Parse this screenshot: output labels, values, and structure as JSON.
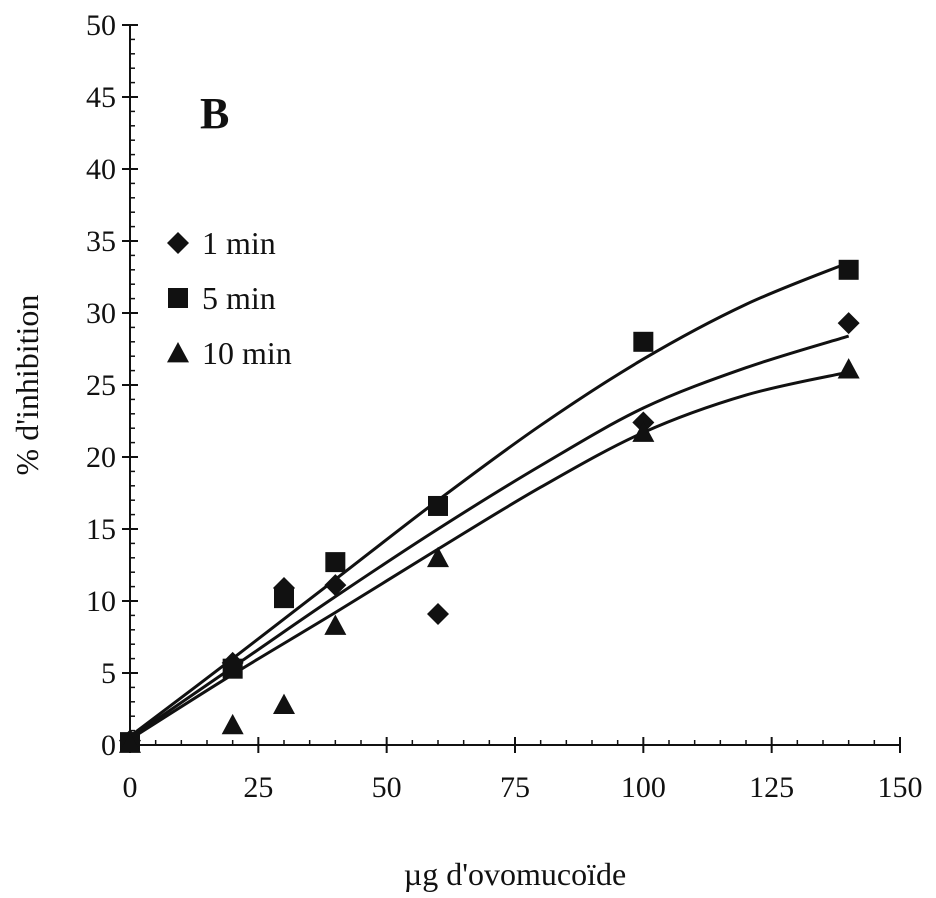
{
  "chart_data": {
    "type": "scatter",
    "panel_label": "B",
    "xlabel": "µg d'ovomucoïde",
    "ylabel": "% d'inhibition",
    "xlim": [
      0,
      150
    ],
    "ylim": [
      0,
      50
    ],
    "x_ticks": [
      0,
      25,
      50,
      75,
      100,
      125,
      150
    ],
    "y_ticks": [
      0,
      5,
      10,
      15,
      20,
      25,
      30,
      35,
      40,
      45,
      50
    ],
    "grid": false,
    "legend_position": "left",
    "series": [
      {
        "name": "1 min",
        "marker": "diamond",
        "points": [
          [
            0,
            0.3
          ],
          [
            20,
            5.7
          ],
          [
            30,
            10.9
          ],
          [
            40,
            11.1
          ],
          [
            60,
            9.1
          ],
          [
            100,
            22.4
          ],
          [
            140,
            29.3
          ]
        ],
        "fit": [
          [
            0,
            0.5
          ],
          [
            20,
            5.4
          ],
          [
            40,
            10.3
          ],
          [
            60,
            15.0
          ],
          [
            80,
            19.4
          ],
          [
            100,
            23.4
          ],
          [
            120,
            26.2
          ],
          [
            140,
            28.4
          ]
        ]
      },
      {
        "name": "5 min",
        "marker": "square",
        "points": [
          [
            0,
            0.2
          ],
          [
            20,
            5.3
          ],
          [
            30,
            10.2
          ],
          [
            40,
            12.7
          ],
          [
            60,
            16.6
          ],
          [
            100,
            28.0
          ],
          [
            140,
            33.0
          ]
        ],
        "fit": [
          [
            0,
            0.6
          ],
          [
            20,
            6.0
          ],
          [
            40,
            11.5
          ],
          [
            60,
            17.0
          ],
          [
            80,
            22.2
          ],
          [
            100,
            26.8
          ],
          [
            120,
            30.6
          ],
          [
            140,
            33.5
          ]
        ]
      },
      {
        "name": "10 min",
        "marker": "triangle",
        "points": [
          [
            0,
            0.1
          ],
          [
            20,
            1.4
          ],
          [
            30,
            2.8
          ],
          [
            40,
            8.3
          ],
          [
            60,
            13.0
          ],
          [
            100,
            21.7
          ],
          [
            140,
            26.1
          ]
        ],
        "fit": [
          [
            0,
            0.4
          ],
          [
            20,
            4.9
          ],
          [
            40,
            9.2
          ],
          [
            60,
            13.6
          ],
          [
            80,
            17.9
          ],
          [
            100,
            21.7
          ],
          [
            120,
            24.3
          ],
          [
            140,
            25.9
          ]
        ]
      }
    ]
  }
}
